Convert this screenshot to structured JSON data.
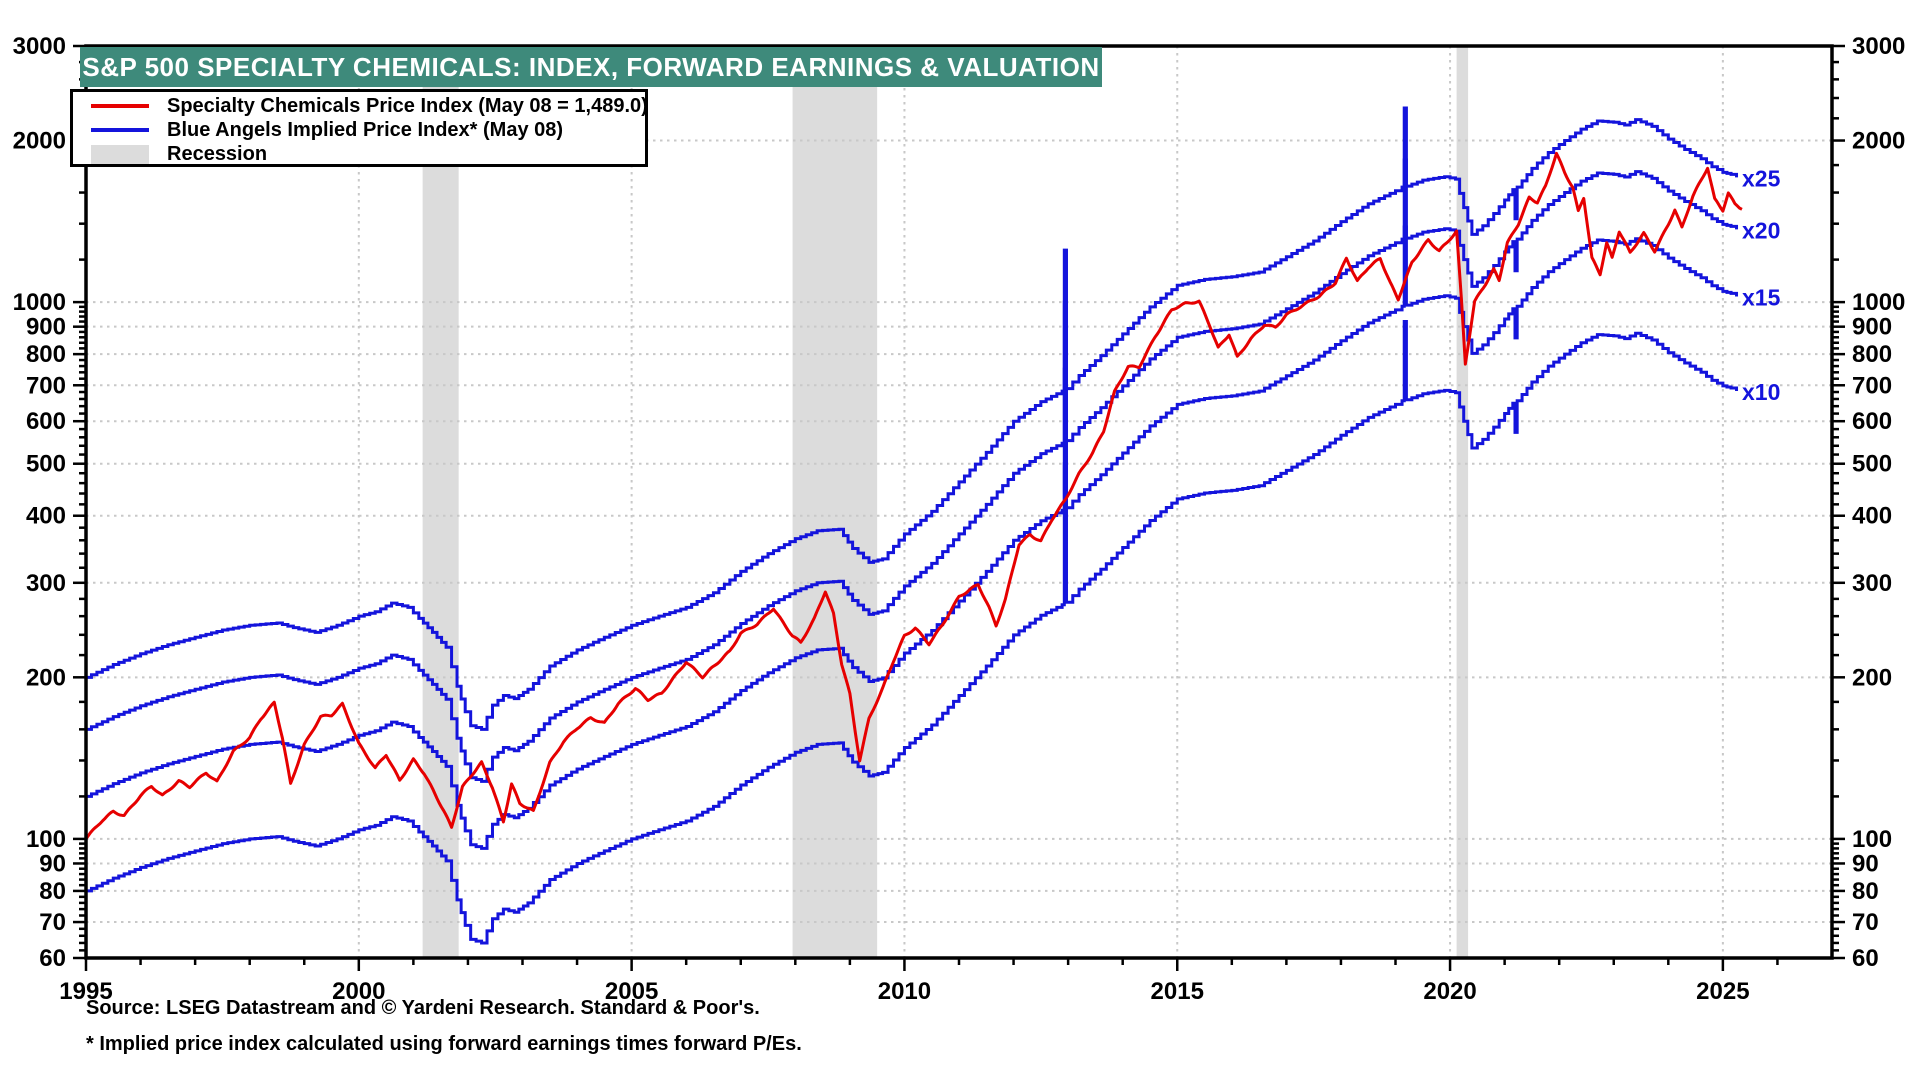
{
  "title": "S&P 500 SPECIALTY CHEMICALS: INDEX, FORWARD EARNINGS & VALUATION",
  "source_line": "Source: LSEG Datastream and © Yardeni Research. Standard & Poor's.",
  "footnote_line": "* Implied price index calculated using forward earnings times forward P/Es.",
  "colors": {
    "price_red": "#e60000",
    "blue_angels_blue": "#1414dc",
    "recession_gray": "#dcdcdc",
    "banner_teal": "#3e8a7b",
    "grid_gray": "#c8c8c8",
    "axis_black": "#000000"
  },
  "legend": [
    {
      "swatch": "line",
      "color": "#e60000",
      "label": "Specialty Chemicals Price Index (May 08 = 1,489.0)"
    },
    {
      "swatch": "line",
      "color": "#1414dc",
      "label": "Blue Angels Implied Price Index* (May 08)"
    },
    {
      "swatch": "box",
      "color": "#dcdcdc",
      "label": "Recession"
    }
  ],
  "chart_data": {
    "type": "line",
    "title": "S&P 500 Specialty Chemicals: Index, Forward Earnings & Valuation",
    "y_scale": "log",
    "x_range": [
      1995,
      2027
    ],
    "y_range": [
      60,
      3000
    ],
    "x_ticks_labeled": [
      1995,
      2000,
      2005,
      2010,
      2015,
      2020,
      2025
    ],
    "x_minor_tick_step": 1,
    "y_ticks_labeled": [
      60,
      70,
      80,
      90,
      100,
      200,
      300,
      400,
      500,
      600,
      700,
      800,
      900,
      1000,
      2000,
      3000
    ],
    "grid_x": [
      2000,
      2005,
      2010,
      2015,
      2020,
      2025
    ],
    "grid_y": [
      70,
      80,
      90,
      100,
      200,
      300,
      400,
      500,
      600,
      700,
      800,
      900,
      1000,
      2000
    ],
    "recessions": [
      [
        2001.17,
        2001.83
      ],
      [
        2007.95,
        2009.5
      ],
      [
        2020.12,
        2020.33
      ]
    ],
    "multiples": [
      10,
      15,
      20,
      25
    ],
    "multiple_labels": [
      {
        "m": 25,
        "text": "x25"
      },
      {
        "m": 20,
        "text": "x20"
      },
      {
        "m": 15,
        "text": "x15"
      },
      {
        "m": 10,
        "text": "x10"
      }
    ],
    "series": [
      {
        "name": "Blue Angels Implied Price Index (forward earnings times forward P/E; x10 line shown, other lines are x15, x20, x25 ratios)",
        "color": "#1414dc",
        "style": "step",
        "points": [
          [
            1995.0,
            80
          ],
          [
            1995.5,
            84.5
          ],
          [
            1996.0,
            88.5
          ],
          [
            1996.5,
            92
          ],
          [
            1997.0,
            95
          ],
          [
            1997.5,
            98
          ],
          [
            1998.0,
            100
          ],
          [
            1998.5,
            101
          ],
          [
            1998.8,
            99
          ],
          [
            1999.2,
            97
          ],
          [
            1999.6,
            100
          ],
          [
            2000.0,
            104
          ],
          [
            2000.3,
            106
          ],
          [
            2000.6,
            110
          ],
          [
            2000.9,
            108
          ],
          [
            2001.1,
            103
          ],
          [
            2001.35,
            97
          ],
          [
            2001.6,
            91
          ],
          [
            2001.8,
            77
          ],
          [
            2001.95,
            69
          ],
          [
            2002.05,
            65
          ],
          [
            2002.25,
            64
          ],
          [
            2002.45,
            71
          ],
          [
            2002.65,
            74
          ],
          [
            2002.85,
            73
          ],
          [
            2003.1,
            76
          ],
          [
            2003.5,
            84
          ],
          [
            2004.0,
            90
          ],
          [
            2004.5,
            95
          ],
          [
            2005.0,
            100
          ],
          [
            2005.5,
            104
          ],
          [
            2006.0,
            108
          ],
          [
            2006.5,
            115
          ],
          [
            2007.0,
            126
          ],
          [
            2007.5,
            136
          ],
          [
            2008.0,
            145
          ],
          [
            2008.4,
            150
          ],
          [
            2008.8,
            151
          ],
          [
            2009.05,
            139
          ],
          [
            2009.35,
            131
          ],
          [
            2009.6,
            133
          ],
          [
            2010.0,
            148
          ],
          [
            2010.5,
            163
          ],
          [
            2011.0,
            185
          ],
          [
            2011.5,
            210
          ],
          [
            2012.0,
            240
          ],
          [
            2012.5,
            261
          ],
          [
            2012.89,
            273
          ],
          [
            2012.93,
            500
          ],
          [
            2012.97,
            276
          ],
          [
            2013.2,
            292
          ],
          [
            2013.6,
            318
          ],
          [
            2014.0,
            349
          ],
          [
            2014.5,
            392
          ],
          [
            2015.0,
            430
          ],
          [
            2015.5,
            441
          ],
          [
            2016.0,
            446
          ],
          [
            2016.5,
            455
          ],
          [
            2017.0,
            486
          ],
          [
            2017.5,
            520
          ],
          [
            2018.0,
            565
          ],
          [
            2018.5,
            610
          ],
          [
            2019.0,
            645
          ],
          [
            2019.12,
            655
          ],
          [
            2019.16,
            920
          ],
          [
            2019.2,
            658
          ],
          [
            2019.5,
            675
          ],
          [
            2019.9,
            685
          ],
          [
            2020.1,
            678
          ],
          [
            2020.25,
            600
          ],
          [
            2020.4,
            535
          ],
          [
            2020.6,
            555
          ],
          [
            2020.8,
            585
          ],
          [
            2021.0,
            620
          ],
          [
            2021.15,
            648
          ],
          [
            2021.19,
            572
          ],
          [
            2021.23,
            655
          ],
          [
            2021.5,
            710
          ],
          [
            2021.8,
            760
          ],
          [
            2022.1,
            800
          ],
          [
            2022.4,
            840
          ],
          [
            2022.7,
            870
          ],
          [
            2023.0,
            865
          ],
          [
            2023.2,
            855
          ],
          [
            2023.4,
            875
          ],
          [
            2023.7,
            850
          ],
          [
            2024.0,
            805
          ],
          [
            2024.3,
            770
          ],
          [
            2024.6,
            740
          ],
          [
            2024.8,
            715
          ],
          [
            2025.0,
            698
          ],
          [
            2025.15,
            692
          ],
          [
            2025.25,
            683
          ]
        ]
      },
      {
        "name": "Specialty Chemicals Price Index",
        "color": "#e60000",
        "style": "line",
        "last_value": 1489.0,
        "last_date": "May 08",
        "points": [
          [
            1995.0,
            100
          ],
          [
            1995.3,
            108
          ],
          [
            1995.5,
            112
          ],
          [
            1995.7,
            110
          ],
          [
            1996.0,
            120
          ],
          [
            1996.2,
            125
          ],
          [
            1996.4,
            120
          ],
          [
            1996.7,
            128
          ],
          [
            1996.9,
            125
          ],
          [
            1997.2,
            133
          ],
          [
            1997.4,
            128
          ],
          [
            1997.7,
            146
          ],
          [
            1998.0,
            155
          ],
          [
            1998.2,
            168
          ],
          [
            1998.45,
            180
          ],
          [
            1998.6,
            155
          ],
          [
            1998.75,
            127
          ],
          [
            1999.0,
            150
          ],
          [
            1999.3,
            169
          ],
          [
            1999.5,
            170
          ],
          [
            1999.7,
            178
          ],
          [
            2000.0,
            150
          ],
          [
            2000.3,
            135
          ],
          [
            2000.5,
            143
          ],
          [
            2000.75,
            128
          ],
          [
            2001.0,
            140
          ],
          [
            2001.2,
            132
          ],
          [
            2001.55,
            113
          ],
          [
            2001.7,
            105
          ],
          [
            2001.9,
            125
          ],
          [
            2002.1,
            133
          ],
          [
            2002.25,
            139
          ],
          [
            2002.45,
            125
          ],
          [
            2002.65,
            108
          ],
          [
            2002.8,
            127
          ],
          [
            2002.95,
            117
          ],
          [
            2003.2,
            113
          ],
          [
            2003.5,
            139
          ],
          [
            2003.75,
            152
          ],
          [
            2004.0,
            161
          ],
          [
            2004.25,
            168
          ],
          [
            2004.5,
            164
          ],
          [
            2004.75,
            178
          ],
          [
            2005.07,
            190
          ],
          [
            2005.3,
            181
          ],
          [
            2005.55,
            186
          ],
          [
            2006.0,
            213
          ],
          [
            2006.3,
            200
          ],
          [
            2006.8,
            224
          ],
          [
            2007.0,
            242
          ],
          [
            2007.3,
            252
          ],
          [
            2007.6,
            270
          ],
          [
            2007.75,
            256
          ],
          [
            2007.95,
            240
          ],
          [
            2008.1,
            233
          ],
          [
            2008.35,
            258
          ],
          [
            2008.55,
            290
          ],
          [
            2008.7,
            263
          ],
          [
            2008.85,
            212
          ],
          [
            2009.0,
            186
          ],
          [
            2009.1,
            158
          ],
          [
            2009.18,
            140
          ],
          [
            2009.35,
            167
          ],
          [
            2009.6,
            190
          ],
          [
            2009.8,
            214
          ],
          [
            2010.0,
            238
          ],
          [
            2010.2,
            246
          ],
          [
            2010.45,
            230
          ],
          [
            2010.7,
            250
          ],
          [
            2011.0,
            282
          ],
          [
            2011.35,
            298
          ],
          [
            2011.55,
            270
          ],
          [
            2011.68,
            250
          ],
          [
            2011.85,
            280
          ],
          [
            2012.1,
            355
          ],
          [
            2012.3,
            370
          ],
          [
            2012.5,
            360
          ],
          [
            2012.7,
            395
          ],
          [
            2012.95,
            430
          ],
          [
            2013.2,
            480
          ],
          [
            2013.45,
            525
          ],
          [
            2013.65,
            575
          ],
          [
            2013.85,
            680
          ],
          [
            2014.1,
            757
          ],
          [
            2014.3,
            755
          ],
          [
            2014.6,
            860
          ],
          [
            2014.9,
            965
          ],
          [
            2015.15,
            990
          ],
          [
            2015.4,
            1000
          ],
          [
            2015.6,
            900
          ],
          [
            2015.75,
            820
          ],
          [
            2015.95,
            870
          ],
          [
            2016.1,
            790
          ],
          [
            2016.35,
            855
          ],
          [
            2016.6,
            910
          ],
          [
            2016.8,
            900
          ],
          [
            2017.0,
            950
          ],
          [
            2017.3,
            990
          ],
          [
            2017.6,
            1030
          ],
          [
            2017.9,
            1090
          ],
          [
            2018.1,
            1210
          ],
          [
            2018.3,
            1095
          ],
          [
            2018.5,
            1160
          ],
          [
            2018.72,
            1205
          ],
          [
            2018.9,
            1085
          ],
          [
            2019.05,
            1010
          ],
          [
            2019.3,
            1180
          ],
          [
            2019.45,
            1240
          ],
          [
            2019.6,
            1300
          ],
          [
            2019.8,
            1240
          ],
          [
            2019.95,
            1290
          ],
          [
            2020.12,
            1350
          ],
          [
            2020.21,
            1000
          ],
          [
            2020.28,
            766
          ],
          [
            2020.45,
            1000
          ],
          [
            2020.65,
            1080
          ],
          [
            2020.8,
            1150
          ],
          [
            2020.9,
            1100
          ],
          [
            2021.05,
            1290
          ],
          [
            2021.25,
            1400
          ],
          [
            2021.45,
            1570
          ],
          [
            2021.6,
            1540
          ],
          [
            2021.75,
            1650
          ],
          [
            2021.95,
            1900
          ],
          [
            2022.1,
            1750
          ],
          [
            2022.25,
            1640
          ],
          [
            2022.35,
            1480
          ],
          [
            2022.45,
            1570
          ],
          [
            2022.6,
            1210
          ],
          [
            2022.75,
            1130
          ],
          [
            2022.87,
            1290
          ],
          [
            2022.97,
            1210
          ],
          [
            2023.1,
            1355
          ],
          [
            2023.3,
            1235
          ],
          [
            2023.55,
            1340
          ],
          [
            2023.75,
            1240
          ],
          [
            2024.0,
            1390
          ],
          [
            2024.12,
            1480
          ],
          [
            2024.25,
            1370
          ],
          [
            2024.45,
            1570
          ],
          [
            2024.6,
            1680
          ],
          [
            2024.72,
            1775
          ],
          [
            2024.85,
            1550
          ],
          [
            2025.0,
            1480
          ],
          [
            2025.1,
            1595
          ],
          [
            2025.22,
            1520
          ],
          [
            2025.35,
            1489
          ]
        ]
      }
    ]
  }
}
